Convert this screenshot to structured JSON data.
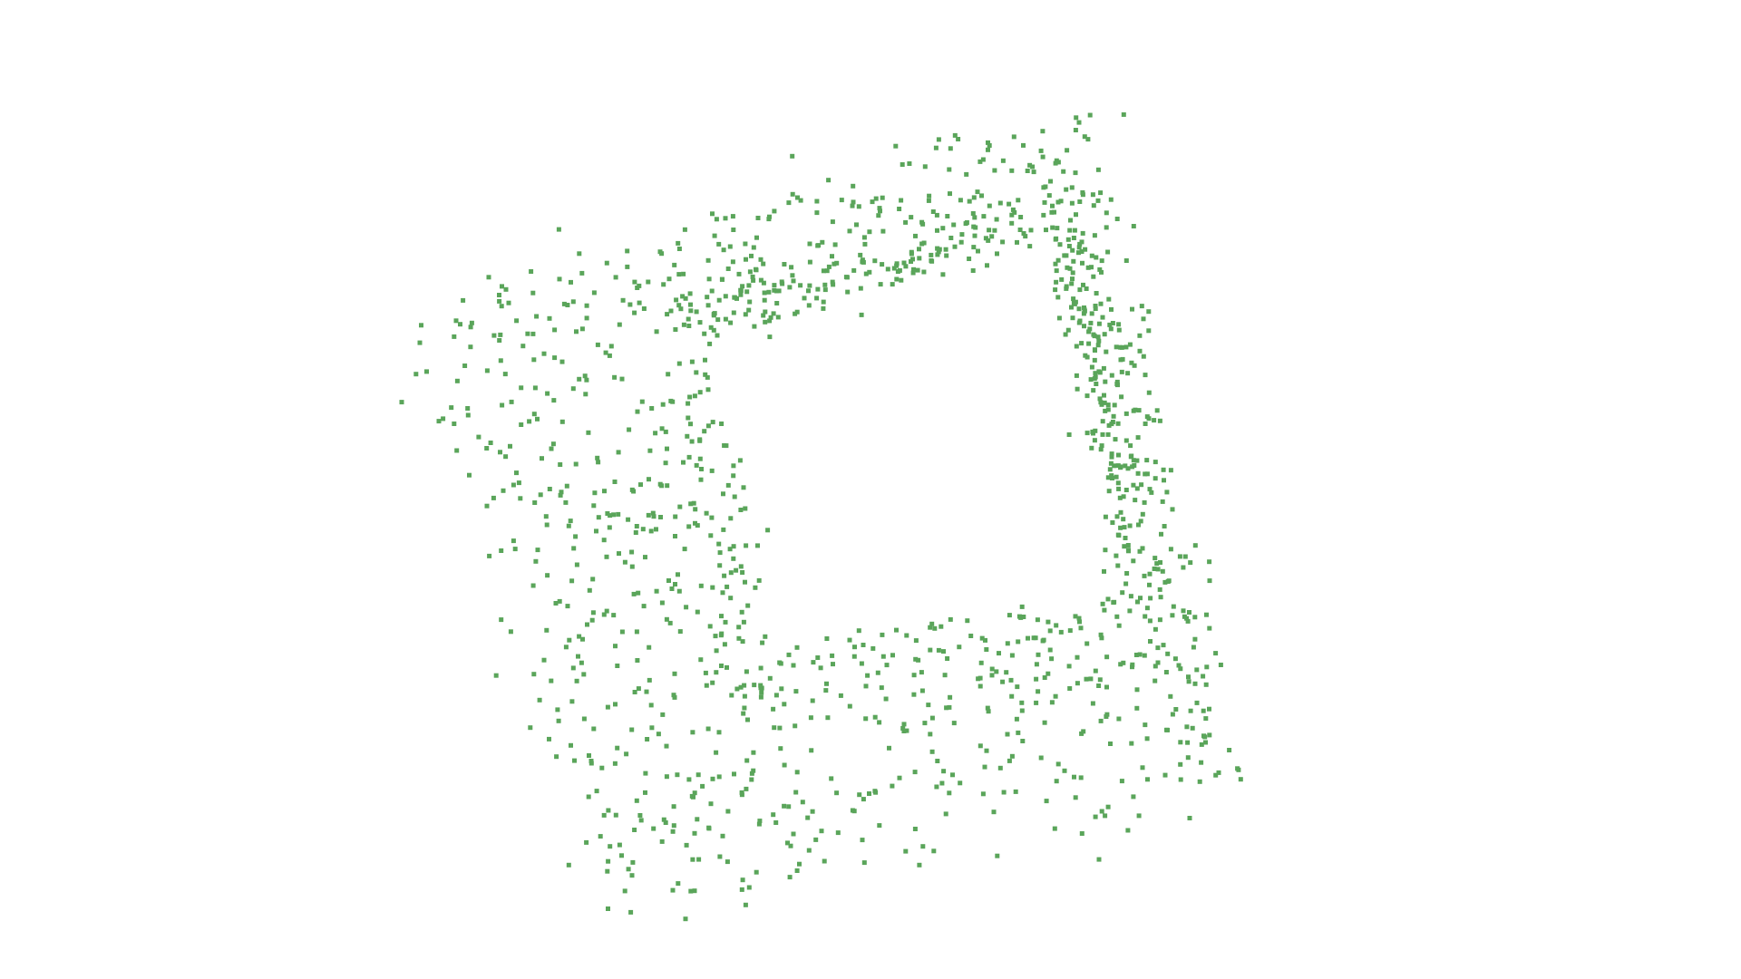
{
  "scene": {
    "background_color": "#ffffff",
    "point_color": "#5aa55a",
    "shape": "square frame outline drawn as scattered points",
    "rotation_deg": -14
  }
}
